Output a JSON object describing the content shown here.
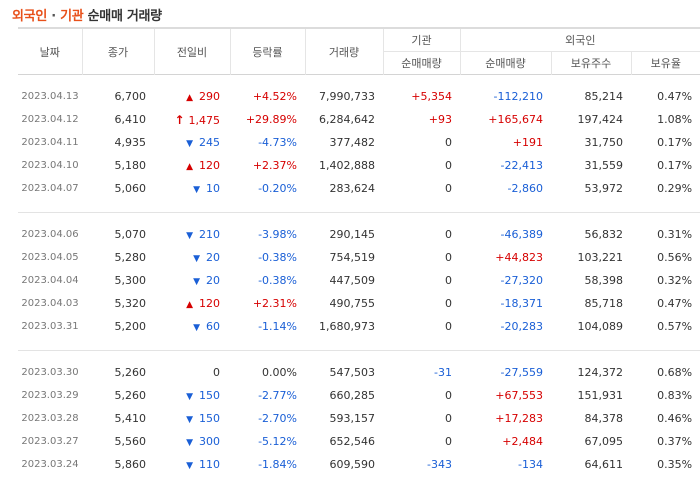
{
  "title": {
    "part1": "외국인",
    "sep": " · ",
    "part2": "기관",
    "part3": "순매매 거래량"
  },
  "headers": {
    "date": "날짜",
    "close": "종가",
    "change": "전일비",
    "rate": "등락률",
    "volume": "거래량",
    "inst_group": "기관",
    "inst_net": "순매매량",
    "foreign_group": "외국인",
    "foreign_net": "순매매량",
    "foreign_holdings": "보유주수",
    "foreign_ratio": "보유율"
  },
  "icons": {
    "up": "up-triangle-icon",
    "down": "down-triangle-icon",
    "limit_up": "upper-limit-arrow-icon",
    "up_color": "#d60000",
    "down_color": "#1a5fd6"
  },
  "groups": [
    [
      {
        "date": "2023.04.13",
        "close": "6,700",
        "dir": "up",
        "change": "290",
        "rate": "+4.52%",
        "volume": "7,990,733",
        "inst": "+5,354",
        "foreign": "-112,210",
        "holdings": "85,214",
        "ratio": "0.47%"
      },
      {
        "date": "2023.04.12",
        "close": "6,410",
        "dir": "limit",
        "change": "1,475",
        "rate": "+29.89%",
        "volume": "6,284,642",
        "inst": "+93",
        "foreign": "+165,674",
        "holdings": "197,424",
        "ratio": "1.08%"
      },
      {
        "date": "2023.04.11",
        "close": "4,935",
        "dir": "down",
        "change": "245",
        "rate": "-4.73%",
        "volume": "377,482",
        "inst": "0",
        "foreign": "+191",
        "holdings": "31,750",
        "ratio": "0.17%"
      },
      {
        "date": "2023.04.10",
        "close": "5,180",
        "dir": "up",
        "change": "120",
        "rate": "+2.37%",
        "volume": "1,402,888",
        "inst": "0",
        "foreign": "-22,413",
        "holdings": "31,559",
        "ratio": "0.17%"
      },
      {
        "date": "2023.04.07",
        "close": "5,060",
        "dir": "down",
        "change": "10",
        "rate": "-0.20%",
        "volume": "283,624",
        "inst": "0",
        "foreign": "-2,860",
        "holdings": "53,972",
        "ratio": "0.29%"
      }
    ],
    [
      {
        "date": "2023.04.06",
        "close": "5,070",
        "dir": "down",
        "change": "210",
        "rate": "-3.98%",
        "volume": "290,145",
        "inst": "0",
        "foreign": "-46,389",
        "holdings": "56,832",
        "ratio": "0.31%"
      },
      {
        "date": "2023.04.05",
        "close": "5,280",
        "dir": "down",
        "change": "20",
        "rate": "-0.38%",
        "volume": "754,519",
        "inst": "0",
        "foreign": "+44,823",
        "holdings": "103,221",
        "ratio": "0.56%"
      },
      {
        "date": "2023.04.04",
        "close": "5,300",
        "dir": "down",
        "change": "20",
        "rate": "-0.38%",
        "volume": "447,509",
        "inst": "0",
        "foreign": "-27,320",
        "holdings": "58,398",
        "ratio": "0.32%"
      },
      {
        "date": "2023.04.03",
        "close": "5,320",
        "dir": "up",
        "change": "120",
        "rate": "+2.31%",
        "volume": "490,755",
        "inst": "0",
        "foreign": "-18,371",
        "holdings": "85,718",
        "ratio": "0.47%"
      },
      {
        "date": "2023.03.31",
        "close": "5,200",
        "dir": "down",
        "change": "60",
        "rate": "-1.14%",
        "volume": "1,680,973",
        "inst": "0",
        "foreign": "-20,283",
        "holdings": "104,089",
        "ratio": "0.57%"
      }
    ],
    [
      {
        "date": "2023.03.30",
        "close": "5,260",
        "dir": "flat",
        "change": "0",
        "rate": "0.00%",
        "volume": "547,503",
        "inst": "-31",
        "foreign": "-27,559",
        "holdings": "124,372",
        "ratio": "0.68%"
      },
      {
        "date": "2023.03.29",
        "close": "5,260",
        "dir": "down",
        "change": "150",
        "rate": "-2.77%",
        "volume": "660,285",
        "inst": "0",
        "foreign": "+67,553",
        "holdings": "151,931",
        "ratio": "0.83%"
      },
      {
        "date": "2023.03.28",
        "close": "5,410",
        "dir": "down",
        "change": "150",
        "rate": "-2.70%",
        "volume": "593,157",
        "inst": "0",
        "foreign": "+17,283",
        "holdings": "84,378",
        "ratio": "0.46%"
      },
      {
        "date": "2023.03.27",
        "close": "5,560",
        "dir": "down",
        "change": "300",
        "rate": "-5.12%",
        "volume": "652,546",
        "inst": "0",
        "foreign": "+2,484",
        "holdings": "67,095",
        "ratio": "0.37%"
      },
      {
        "date": "2023.03.24",
        "close": "5,860",
        "dir": "down",
        "change": "110",
        "rate": "-1.84%",
        "volume": "609,590",
        "inst": "-343",
        "foreign": "-134",
        "holdings": "64,611",
        "ratio": "0.35%"
      }
    ]
  ]
}
